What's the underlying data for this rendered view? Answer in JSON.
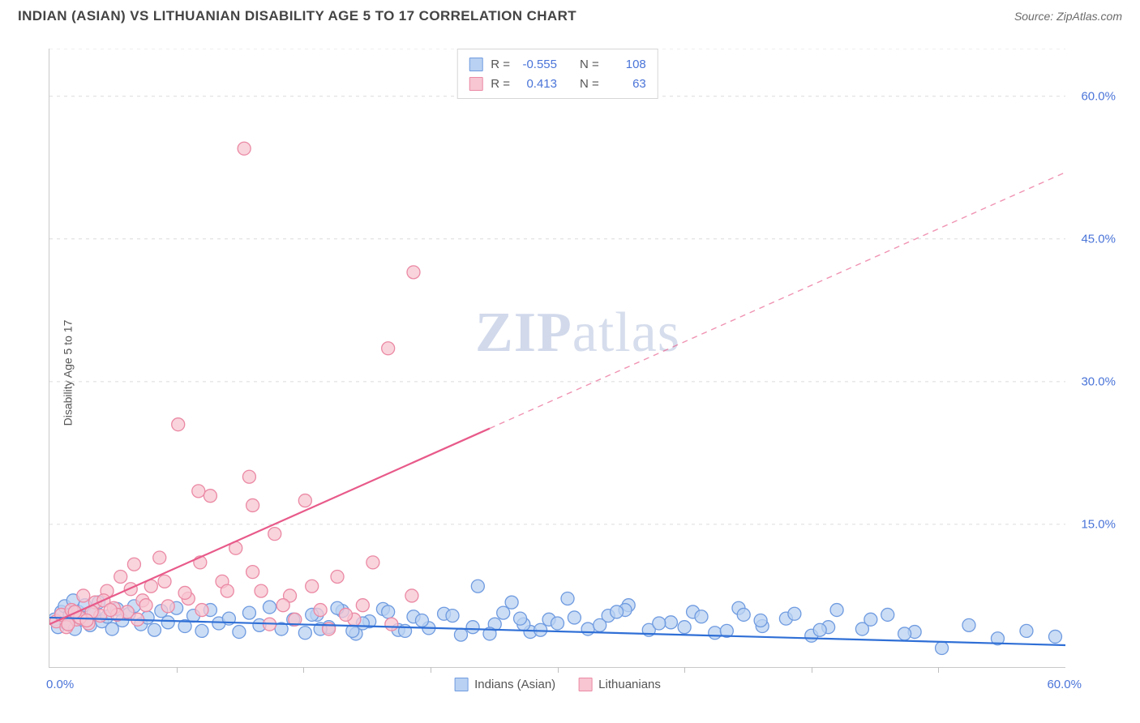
{
  "header": {
    "title": "INDIAN (ASIAN) VS LITHUANIAN DISABILITY AGE 5 TO 17 CORRELATION CHART",
    "source": "Source: ZipAtlas.com"
  },
  "chart": {
    "type": "scatter",
    "ylabel": "Disability Age 5 to 17",
    "xlim": [
      0,
      60
    ],
    "ylim": [
      0,
      65
    ],
    "xtick_step": 7.5,
    "ytick_step": 15,
    "ytick_labels": [
      "15.0%",
      "30.0%",
      "45.0%",
      "60.0%"
    ],
    "ytick_values": [
      15,
      30,
      45,
      60
    ],
    "x_min_label": "0.0%",
    "x_max_label": "60.0%",
    "grid_color": "#dcdcdc",
    "axis_color": "#c9c9c9",
    "tick_label_color": "#4a74d8",
    "background_color": "#ffffff",
    "marker_radius": 8,
    "marker_stroke_width": 1.3,
    "title_fontsize": 17,
    "ylabel_fontsize": 14,
    "tick_fontsize": 15,
    "watermark": "ZIPatlas",
    "series": [
      {
        "name": "Indians (Asian)",
        "marker_fill": "#b9d1f2",
        "marker_stroke": "#6f9be0",
        "line_color": "#2f6fd6",
        "line_width": 2.2,
        "R": "-0.555",
        "N": "108",
        "trend": {
          "x1": 0,
          "y1": 5.2,
          "x2": 60,
          "y2": 2.3,
          "solid_until": 60
        },
        "points": [
          [
            0.3,
            5.0
          ],
          [
            0.5,
            4.2
          ],
          [
            0.7,
            5.8
          ],
          [
            0.9,
            6.4
          ],
          [
            1.0,
            4.6
          ],
          [
            1.2,
            5.5
          ],
          [
            1.4,
            7.0
          ],
          [
            1.5,
            4.0
          ],
          [
            1.7,
            5.8
          ],
          [
            1.9,
            5.0
          ],
          [
            2.1,
            6.5
          ],
          [
            2.4,
            4.4
          ],
          [
            2.6,
            5.7
          ],
          [
            2.9,
            6.8
          ],
          [
            3.1,
            4.8
          ],
          [
            3.4,
            5.3
          ],
          [
            3.7,
            4.0
          ],
          [
            4.0,
            6.1
          ],
          [
            4.3,
            4.9
          ],
          [
            4.7,
            5.6
          ],
          [
            5.0,
            6.4
          ],
          [
            5.4,
            4.5
          ],
          [
            5.8,
            5.2
          ],
          [
            6.2,
            3.9
          ],
          [
            6.6,
            5.9
          ],
          [
            7.0,
            4.7
          ],
          [
            7.5,
            6.2
          ],
          [
            8.0,
            4.3
          ],
          [
            8.5,
            5.4
          ],
          [
            9.0,
            3.8
          ],
          [
            9.5,
            6.0
          ],
          [
            10.0,
            4.6
          ],
          [
            10.6,
            5.1
          ],
          [
            11.2,
            3.7
          ],
          [
            11.8,
            5.7
          ],
          [
            12.4,
            4.4
          ],
          [
            13.0,
            6.3
          ],
          [
            13.7,
            4.0
          ],
          [
            14.4,
            5.0
          ],
          [
            15.1,
            3.6
          ],
          [
            15.8,
            5.5
          ],
          [
            16.5,
            4.2
          ],
          [
            17.3,
            5.9
          ],
          [
            18.1,
            3.5
          ],
          [
            18.9,
            4.8
          ],
          [
            19.7,
            6.1
          ],
          [
            20.6,
            3.9
          ],
          [
            21.5,
            5.3
          ],
          [
            22.4,
            4.1
          ],
          [
            23.3,
            5.6
          ],
          [
            24.3,
            3.4
          ],
          [
            25.3,
            8.5
          ],
          [
            26.3,
            4.5
          ],
          [
            27.3,
            6.8
          ],
          [
            28.4,
            3.7
          ],
          [
            29.5,
            5.0
          ],
          [
            30.6,
            7.2
          ],
          [
            31.8,
            4.0
          ],
          [
            33.0,
            5.4
          ],
          [
            34.2,
            6.5
          ],
          [
            35.4,
            3.9
          ],
          [
            36.7,
            4.7
          ],
          [
            38.0,
            5.8
          ],
          [
            39.3,
            3.6
          ],
          [
            40.7,
            6.2
          ],
          [
            42.1,
            4.3
          ],
          [
            43.5,
            5.1
          ],
          [
            45.0,
            3.3
          ],
          [
            46.5,
            6.0
          ],
          [
            48.0,
            4.0
          ],
          [
            49.5,
            5.5
          ],
          [
            51.1,
            3.7
          ],
          [
            52.7,
            2.0
          ],
          [
            54.3,
            4.4
          ],
          [
            56.0,
            3.0
          ],
          [
            57.7,
            3.8
          ],
          [
            59.4,
            3.2
          ],
          [
            15.5,
            5.5
          ],
          [
            16.0,
            4.0
          ],
          [
            17.0,
            6.2
          ],
          [
            18.5,
            4.6
          ],
          [
            20.0,
            5.8
          ],
          [
            21.0,
            3.8
          ],
          [
            22.0,
            4.9
          ],
          [
            23.8,
            5.4
          ],
          [
            25.0,
            4.2
          ],
          [
            26.8,
            5.7
          ],
          [
            28.0,
            4.5
          ],
          [
            29.0,
            3.9
          ],
          [
            31.0,
            5.2
          ],
          [
            32.5,
            4.4
          ],
          [
            34.0,
            6.0
          ],
          [
            36.0,
            4.6
          ],
          [
            38.5,
            5.3
          ],
          [
            40.0,
            3.8
          ],
          [
            42.0,
            4.9
          ],
          [
            44.0,
            5.6
          ],
          [
            46.0,
            4.2
          ],
          [
            48.5,
            5.0
          ],
          [
            50.5,
            3.5
          ],
          [
            17.9,
            3.8
          ],
          [
            26.0,
            3.5
          ],
          [
            27.8,
            5.1
          ],
          [
            30.0,
            4.6
          ],
          [
            33.5,
            5.8
          ],
          [
            37.5,
            4.2
          ],
          [
            41.0,
            5.5
          ],
          [
            45.5,
            3.9
          ]
        ]
      },
      {
        "name": "Lithuanians",
        "marker_fill": "#f7c6d2",
        "marker_stroke": "#eb89a4",
        "line_color": "#e85a8a",
        "line_width": 2.2,
        "R": "0.413",
        "N": "63",
        "trend": {
          "x1": 0,
          "y1": 4.5,
          "x2": 60,
          "y2": 52,
          "solid_until": 26
        },
        "points": [
          [
            0.4,
            4.8
          ],
          [
            0.7,
            5.5
          ],
          [
            1.0,
            4.2
          ],
          [
            1.3,
            6.0
          ],
          [
            1.6,
            5.0
          ],
          [
            2.0,
            7.5
          ],
          [
            2.3,
            4.6
          ],
          [
            2.7,
            6.8
          ],
          [
            3.0,
            5.4
          ],
          [
            3.4,
            8.0
          ],
          [
            3.8,
            6.2
          ],
          [
            4.2,
            9.5
          ],
          [
            4.6,
            5.8
          ],
          [
            5.0,
            10.8
          ],
          [
            5.5,
            7.0
          ],
          [
            6.0,
            8.5
          ],
          [
            6.5,
            11.5
          ],
          [
            7.0,
            6.4
          ],
          [
            7.6,
            25.5
          ],
          [
            8.2,
            7.2
          ],
          [
            8.8,
            18.5
          ],
          [
            9.5,
            18.0
          ],
          [
            10.2,
            9.0
          ],
          [
            11.0,
            12.5
          ],
          [
            11.8,
            20.0
          ],
          [
            11.5,
            54.5
          ],
          [
            12.5,
            8.0
          ],
          [
            13.3,
            14.0
          ],
          [
            14.2,
            7.5
          ],
          [
            15.1,
            17.5
          ],
          [
            16.0,
            6.0
          ],
          [
            17.0,
            9.5
          ],
          [
            18.0,
            5.0
          ],
          [
            19.1,
            11.0
          ],
          [
            20.2,
            4.5
          ],
          [
            20.0,
            33.5
          ],
          [
            21.4,
            7.5
          ],
          [
            21.5,
            41.5
          ],
          [
            1.8,
            5.2
          ],
          [
            2.5,
            5.8
          ],
          [
            3.2,
            7.0
          ],
          [
            4.0,
            5.5
          ],
          [
            4.8,
            8.2
          ],
          [
            5.7,
            6.5
          ],
          [
            6.8,
            9.0
          ],
          [
            8.0,
            7.8
          ],
          [
            9.0,
            6.0
          ],
          [
            10.5,
            8.0
          ],
          [
            12.0,
            10.0
          ],
          [
            13.8,
            6.5
          ],
          [
            15.5,
            8.5
          ],
          [
            17.5,
            5.5
          ],
          [
            12.0,
            17.0
          ],
          [
            13.0,
            4.5
          ],
          [
            14.5,
            5.0
          ],
          [
            16.5,
            4.0
          ],
          [
            18.5,
            6.5
          ],
          [
            1.1,
            4.5
          ],
          [
            1.5,
            5.8
          ],
          [
            2.2,
            4.9
          ],
          [
            3.6,
            6.0
          ],
          [
            5.2,
            5.0
          ],
          [
            8.9,
            11.0
          ]
        ]
      }
    ],
    "bottom_legend": {
      "items": [
        {
          "label": "Indians (Asian)",
          "fill": "#b9d1f2",
          "stroke": "#6f9be0"
        },
        {
          "label": "Lithuanians",
          "fill": "#f7c6d2",
          "stroke": "#eb89a4"
        }
      ]
    },
    "stats_box": {
      "border_color": "#d6d6d6",
      "rows": [
        {
          "fill": "#b9d1f2",
          "stroke": "#6f9be0",
          "R_label": "R =",
          "R": "-0.555",
          "N_label": "N =",
          "N": "108"
        },
        {
          "fill": "#f7c6d2",
          "stroke": "#eb89a4",
          "R_label": "R =",
          "R": "0.413",
          "N_label": "N =",
          "N": "63"
        }
      ]
    }
  }
}
